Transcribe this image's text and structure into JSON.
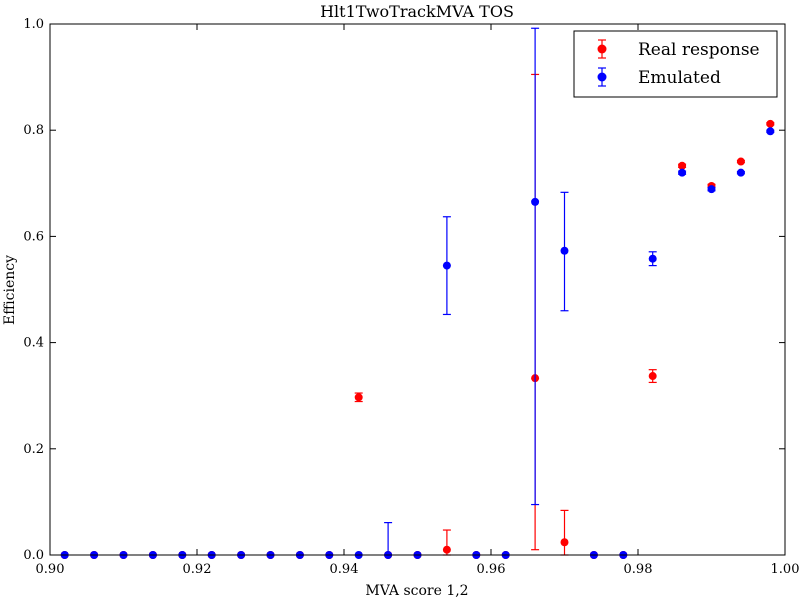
{
  "chart_data": {
    "type": "scatter",
    "title": "Hlt1TwoTrackMVA TOS",
    "xlabel": "MVA score 1,2",
    "ylabel": "Efficiency",
    "xlim": [
      0.9,
      1.0
    ],
    "ylim": [
      0.0,
      1.0
    ],
    "xticks": [
      0.9,
      0.92,
      0.94,
      0.96,
      0.98,
      1.0
    ],
    "xtick_labels": [
      "0.90",
      "0.92",
      "0.94",
      "0.96",
      "0.98",
      "1.00"
    ],
    "yticks": [
      0.0,
      0.2,
      0.4,
      0.6,
      0.8,
      1.0
    ],
    "ytick_labels": [
      "0.0",
      "0.2",
      "0.4",
      "0.6",
      "0.8",
      "1.0"
    ],
    "grid": false,
    "legend_position": "top-right",
    "series": [
      {
        "name": "Real response",
        "color": "#ff0000",
        "points": [
          {
            "x": 0.902,
            "y": 0.0,
            "err_lo": 0.0,
            "err_hi": 0.0
          },
          {
            "x": 0.906,
            "y": 0.0,
            "err_lo": 0.0,
            "err_hi": 0.0
          },
          {
            "x": 0.91,
            "y": 0.0,
            "err_lo": 0.0,
            "err_hi": 0.0
          },
          {
            "x": 0.914,
            "y": 0.0,
            "err_lo": 0.0,
            "err_hi": 0.0
          },
          {
            "x": 0.918,
            "y": 0.0,
            "err_lo": 0.0,
            "err_hi": 0.0
          },
          {
            "x": 0.922,
            "y": 0.0,
            "err_lo": 0.0,
            "err_hi": 0.0
          },
          {
            "x": 0.926,
            "y": 0.0,
            "err_lo": 0.0,
            "err_hi": 0.0
          },
          {
            "x": 0.93,
            "y": 0.0,
            "err_lo": 0.0,
            "err_hi": 0.0
          },
          {
            "x": 0.934,
            "y": 0.0,
            "err_lo": 0.0,
            "err_hi": 0.0
          },
          {
            "x": 0.938,
            "y": 0.0,
            "err_lo": 0.0,
            "err_hi": 0.0
          },
          {
            "x": 0.942,
            "y": 0.297,
            "err_lo": 0.008,
            "err_hi": 0.008
          },
          {
            "x": 0.946,
            "y": 0.0,
            "err_lo": 0.0,
            "err_hi": 0.0
          },
          {
            "x": 0.95,
            "y": 0.0,
            "err_lo": 0.0,
            "err_hi": 0.0
          },
          {
            "x": 0.954,
            "y": 0.01,
            "err_lo": 0.01,
            "err_hi": 0.037
          },
          {
            "x": 0.958,
            "y": 0.0,
            "err_lo": 0.0,
            "err_hi": 0.0
          },
          {
            "x": 0.962,
            "y": 0.0,
            "err_lo": 0.0,
            "err_hi": 0.0
          },
          {
            "x": 0.966,
            "y": 0.333,
            "err_lo": 0.323,
            "err_hi": 0.572
          },
          {
            "x": 0.97,
            "y": 0.024,
            "err_lo": 0.024,
            "err_hi": 0.06
          },
          {
            "x": 0.974,
            "y": 0.0,
            "err_lo": 0.0,
            "err_hi": 0.0
          },
          {
            "x": 0.978,
            "y": 0.0,
            "err_lo": 0.0,
            "err_hi": 0.0
          },
          {
            "x": 0.982,
            "y": 0.337,
            "err_lo": 0.012,
            "err_hi": 0.012
          },
          {
            "x": 0.986,
            "y": 0.733,
            "err_lo": 0.003,
            "err_hi": 0.003
          },
          {
            "x": 0.99,
            "y": 0.695,
            "err_lo": 0.003,
            "err_hi": 0.003
          },
          {
            "x": 0.994,
            "y": 0.741,
            "err_lo": 0.002,
            "err_hi": 0.002
          },
          {
            "x": 0.998,
            "y": 0.812,
            "err_lo": 0.002,
            "err_hi": 0.002
          }
        ]
      },
      {
        "name": "Emulated",
        "color": "#0000ff",
        "points": [
          {
            "x": 0.902,
            "y": 0.0,
            "err_lo": 0.0,
            "err_hi": 0.0
          },
          {
            "x": 0.906,
            "y": 0.0,
            "err_lo": 0.0,
            "err_hi": 0.0
          },
          {
            "x": 0.91,
            "y": 0.0,
            "err_lo": 0.0,
            "err_hi": 0.0
          },
          {
            "x": 0.914,
            "y": 0.0,
            "err_lo": 0.0,
            "err_hi": 0.0
          },
          {
            "x": 0.918,
            "y": 0.0,
            "err_lo": 0.0,
            "err_hi": 0.0
          },
          {
            "x": 0.922,
            "y": 0.0,
            "err_lo": 0.0,
            "err_hi": 0.0
          },
          {
            "x": 0.926,
            "y": 0.0,
            "err_lo": 0.0,
            "err_hi": 0.0
          },
          {
            "x": 0.93,
            "y": 0.0,
            "err_lo": 0.0,
            "err_hi": 0.0
          },
          {
            "x": 0.934,
            "y": 0.0,
            "err_lo": 0.0,
            "err_hi": 0.0
          },
          {
            "x": 0.938,
            "y": 0.0,
            "err_lo": 0.0,
            "err_hi": 0.0
          },
          {
            "x": 0.942,
            "y": 0.0,
            "err_lo": 0.0,
            "err_hi": 0.0
          },
          {
            "x": 0.946,
            "y": 0.0,
            "err_lo": 0.0,
            "err_hi": 0.061
          },
          {
            "x": 0.95,
            "y": 0.0,
            "err_lo": 0.0,
            "err_hi": 0.0
          },
          {
            "x": 0.954,
            "y": 0.545,
            "err_lo": 0.092,
            "err_hi": 0.092
          },
          {
            "x": 0.958,
            "y": 0.0,
            "err_lo": 0.0,
            "err_hi": 0.0
          },
          {
            "x": 0.962,
            "y": 0.0,
            "err_lo": 0.0,
            "err_hi": 0.0
          },
          {
            "x": 0.966,
            "y": 0.665,
            "err_lo": 0.57,
            "err_hi": 0.327
          },
          {
            "x": 0.97,
            "y": 0.573,
            "err_lo": 0.113,
            "err_hi": 0.11
          },
          {
            "x": 0.974,
            "y": 0.0,
            "err_lo": 0.0,
            "err_hi": 0.0
          },
          {
            "x": 0.978,
            "y": 0.0,
            "err_lo": 0.0,
            "err_hi": 0.0
          },
          {
            "x": 0.982,
            "y": 0.558,
            "err_lo": 0.013,
            "err_hi": 0.013
          },
          {
            "x": 0.986,
            "y": 0.72,
            "err_lo": 0.003,
            "err_hi": 0.003
          },
          {
            "x": 0.99,
            "y": 0.689,
            "err_lo": 0.003,
            "err_hi": 0.003
          },
          {
            "x": 0.994,
            "y": 0.72,
            "err_lo": 0.002,
            "err_hi": 0.002
          },
          {
            "x": 0.998,
            "y": 0.798,
            "err_lo": 0.002,
            "err_hi": 0.002
          }
        ]
      }
    ]
  }
}
